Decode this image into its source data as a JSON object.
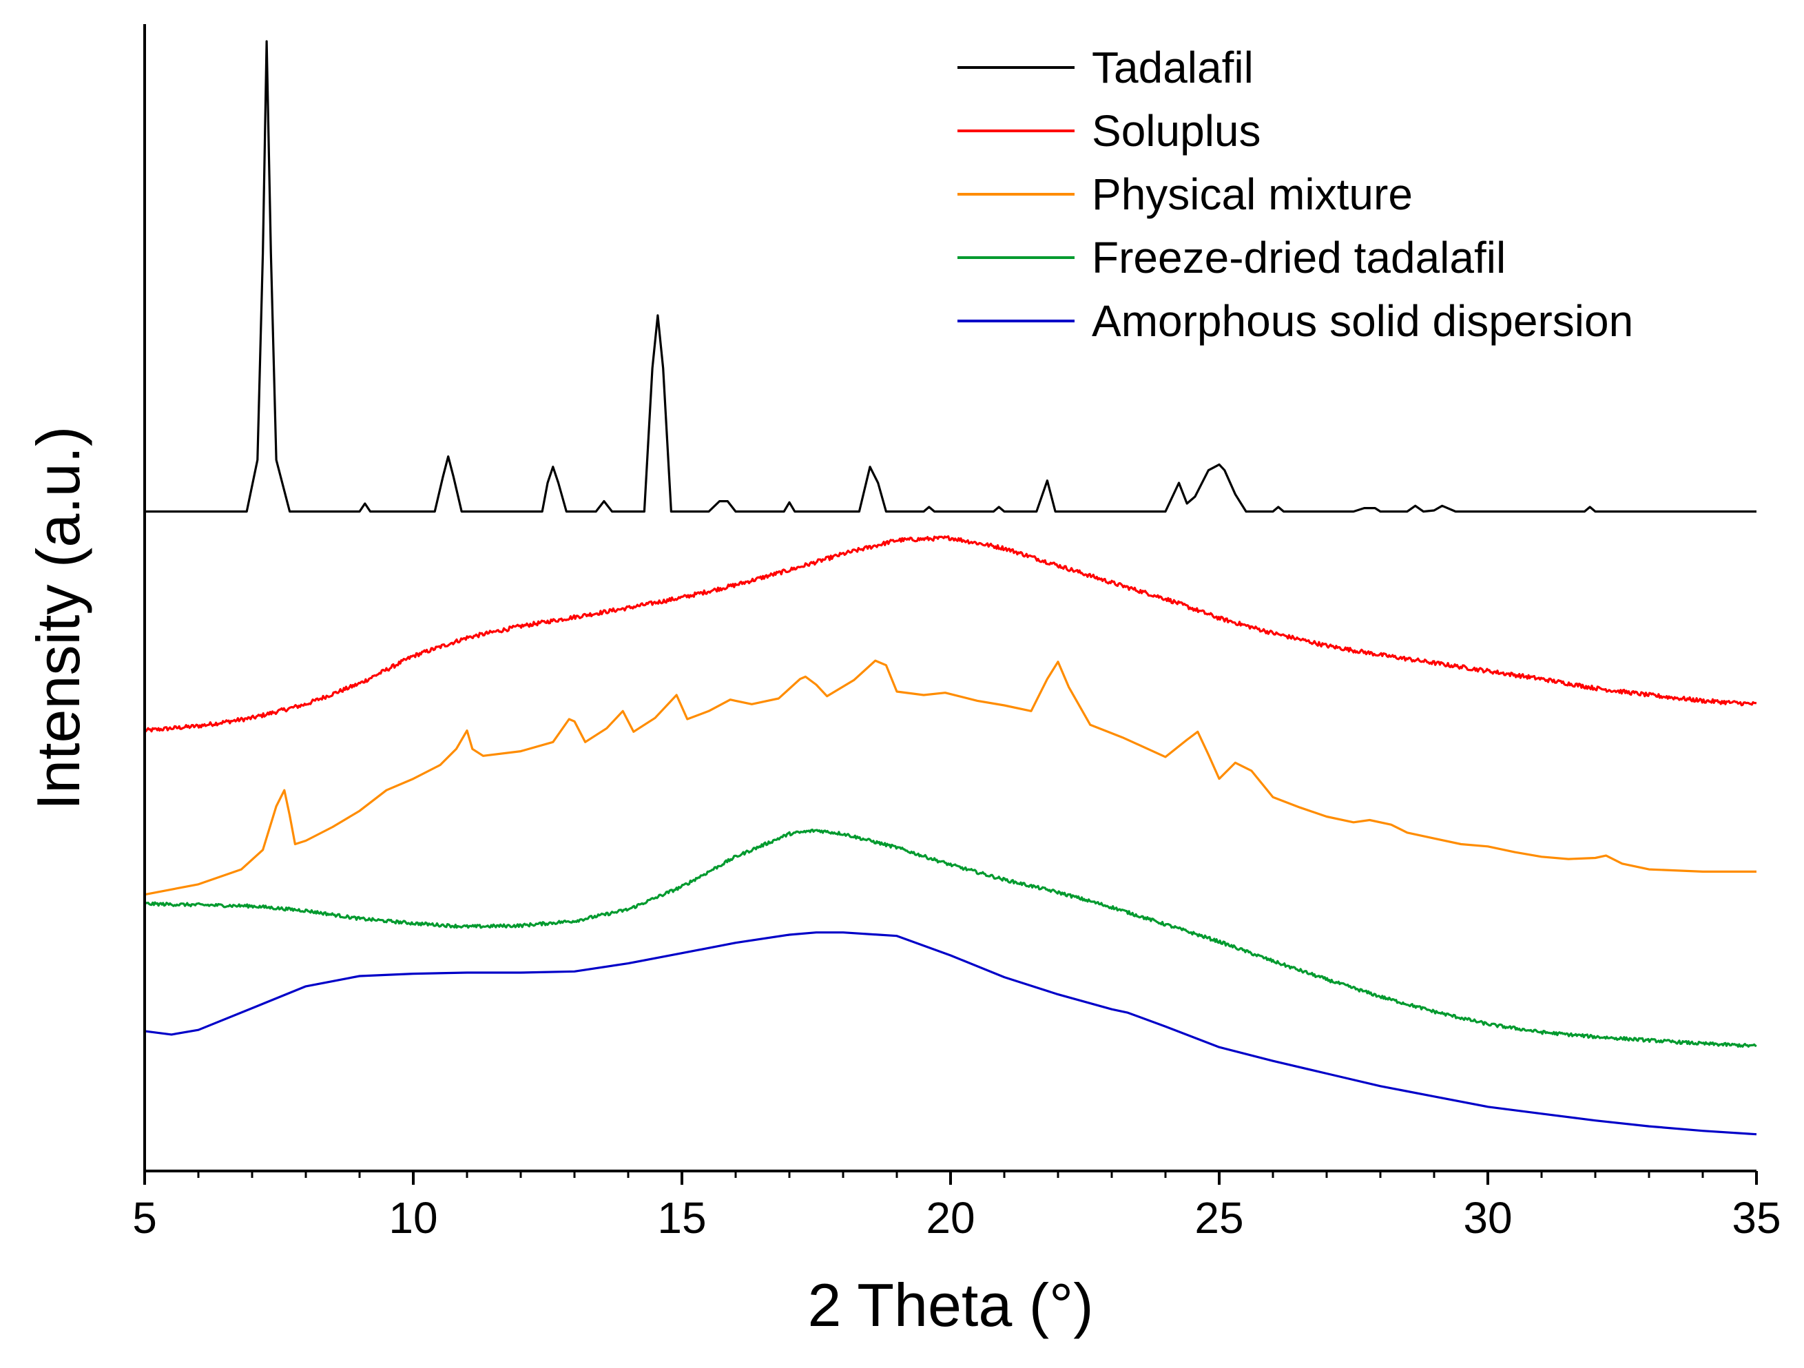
{
  "chart_data": {
    "type": "line",
    "title": "",
    "xlabel": "2 Theta (°)",
    "ylabel": "Intensity (a.u.)",
    "xlim": [
      5,
      35
    ],
    "ylim": [
      0,
      100
    ],
    "xticks": [
      5,
      10,
      15,
      20,
      25,
      30,
      35
    ],
    "xtick_labels": [
      "5",
      "10",
      "15",
      "20",
      "25",
      "30",
      "35"
    ],
    "y_ticks_shown": false,
    "grid": false,
    "legend_position": "top-right",
    "series": [
      {
        "name": "Tadalafil",
        "color": "#000000",
        "noise": 0,
        "x": [
          5,
          6.9,
          7.1,
          7.2,
          7.27,
          7.35,
          7.45,
          7.7,
          9.0,
          9.1,
          9.2,
          10.4,
          10.55,
          10.65,
          10.75,
          10.9,
          12.4,
          12.5,
          12.6,
          12.7,
          12.85,
          13.4,
          13.55,
          13.7,
          14.3,
          14.45,
          14.55,
          14.65,
          14.8,
          15.5,
          15.7,
          15.85,
          16.0,
          16.9,
          17.0,
          17.1,
          18.3,
          18.5,
          18.65,
          18.8,
          19.5,
          19.6,
          19.7,
          20.8,
          20.9,
          21.0,
          21.6,
          21.8,
          21.95,
          24.0,
          24.25,
          24.4,
          24.55,
          24.8,
          25.0,
          25.1,
          25.3,
          25.5,
          26.0,
          26.1,
          26.2,
          27.5,
          27.7,
          27.9,
          28.0,
          28.5,
          28.65,
          28.8,
          29.0,
          29.15,
          29.4,
          31.8,
          31.9,
          32.0,
          35
        ],
        "y": [
          57.5,
          57.5,
          62,
          80,
          98.5,
          80,
          62,
          57.5,
          57.5,
          58.2,
          57.5,
          57.5,
          60.5,
          62.3,
          60.5,
          57.5,
          57.5,
          60,
          61.4,
          60,
          57.5,
          57.5,
          58.4,
          57.5,
          57.5,
          70,
          74.6,
          70,
          57.5,
          57.5,
          58.4,
          58.4,
          57.5,
          57.5,
          58.3,
          57.5,
          57.5,
          61.4,
          60,
          57.5,
          57.5,
          57.9,
          57.5,
          57.5,
          57.9,
          57.5,
          57.5,
          60.2,
          57.5,
          57.5,
          60,
          58.2,
          58.8,
          61.1,
          61.6,
          61.1,
          59,
          57.5,
          57.5,
          57.9,
          57.5,
          57.5,
          57.8,
          57.8,
          57.5,
          57.5,
          58,
          57.5,
          57.6,
          58,
          57.5,
          57.5,
          57.9,
          57.5,
          57.5
        ]
      },
      {
        "name": "Soluplus",
        "color": "#ff0000",
        "noise": 0.18,
        "x": [
          5,
          6,
          7,
          8,
          9,
          10,
          11,
          12,
          13,
          14,
          15,
          16,
          17,
          18,
          19,
          20,
          21,
          22,
          23,
          24,
          25,
          26,
          27,
          28,
          29,
          30,
          31,
          32,
          33,
          34,
          35
        ],
        "y": [
          38.4,
          38.8,
          39.5,
          40.7,
          42.5,
          44.9,
          46.5,
          47.5,
          48.3,
          49.1,
          50,
          51.1,
          52.4,
          53.8,
          55,
          55.2,
          54.3,
          52.8,
          51.3,
          49.9,
          48.2,
          46.9,
          45.8,
          45,
          44.3,
          43.6,
          42.9,
          42.1,
          41.5,
          41,
          40.7
        ]
      },
      {
        "name": "Physical mixture",
        "color": "#ff8c00",
        "noise": 0,
        "x": [
          5,
          6,
          6.8,
          7.2,
          7.45,
          7.6,
          7.7,
          7.8,
          8.0,
          8.5,
          9.0,
          9.5,
          10.0,
          10.5,
          10.8,
          11.0,
          11.1,
          11.3,
          12.0,
          12.6,
          12.9,
          13.0,
          13.2,
          13.6,
          13.9,
          14.1,
          14.5,
          14.9,
          15.1,
          15.5,
          15.9,
          16.0,
          16.3,
          16.8,
          17.2,
          17.3,
          17.5,
          17.7,
          18.2,
          18.6,
          18.8,
          19.0,
          19.5,
          19.9,
          20.5,
          21.0,
          21.5,
          21.8,
          22.0,
          22.2,
          22.6,
          23.2,
          24.0,
          24.4,
          24.6,
          24.8,
          25.0,
          25.3,
          25.6,
          26.0,
          26.5,
          27.0,
          27.5,
          27.8,
          28.2,
          28.5,
          29.0,
          29.5,
          30.0,
          30.5,
          31.0,
          31.5,
          32.0,
          32.2,
          32.5,
          33.0,
          34.0,
          35
        ],
        "y": [
          24.1,
          25,
          26.3,
          28,
          31.8,
          33.2,
          31,
          28.5,
          28.8,
          30,
          31.4,
          33.2,
          34.2,
          35.4,
          36.8,
          38.4,
          36.8,
          36.2,
          36.6,
          37.4,
          39.4,
          39.2,
          37.4,
          38.6,
          40.1,
          38.3,
          39.5,
          41.5,
          39.4,
          40.1,
          41.1,
          41,
          40.7,
          41.2,
          42.9,
          43.1,
          42.4,
          41.4,
          42.8,
          44.5,
          44.1,
          41.8,
          41.5,
          41.7,
          41,
          40.6,
          40.1,
          42.9,
          44.4,
          42.2,
          38.9,
          37.8,
          36.1,
          37.6,
          38.3,
          36.3,
          34.2,
          35.6,
          34.9,
          32.6,
          31.7,
          30.9,
          30.4,
          30.6,
          30.2,
          29.5,
          29,
          28.5,
          28.3,
          27.8,
          27.4,
          27.2,
          27.3,
          27.5,
          26.8,
          26.3,
          26.1,
          26.1
        ]
      },
      {
        "name": "Freeze-dried tadalafil",
        "color": "#009a2e",
        "noise": 0.14,
        "x": [
          5,
          6,
          7,
          8,
          9,
          10,
          11,
          12,
          13,
          14,
          15,
          16,
          17,
          17.5,
          18,
          19,
          20,
          21,
          22,
          23,
          24,
          25,
          26,
          27,
          28,
          29,
          30,
          31,
          32,
          33,
          34,
          35
        ],
        "y": [
          23.3,
          23.2,
          23.1,
          22.7,
          22,
          21.6,
          21.3,
          21.4,
          21.8,
          22.8,
          24.8,
          27.4,
          29.4,
          29.7,
          29.4,
          28.2,
          26.7,
          25.4,
          24.3,
          23,
          21.5,
          20,
          18.3,
          16.7,
          15.2,
          13.9,
          12.8,
          12.1,
          11.7,
          11.4,
          11.1,
          10.9
        ]
      },
      {
        "name": "Amorphous solid dispersion",
        "color": "#0000c8",
        "noise": 0,
        "x": [
          5,
          5.5,
          6,
          7,
          8,
          9,
          10,
          11,
          12,
          13,
          14,
          15,
          16,
          17,
          17.5,
          18,
          19,
          20,
          21,
          22,
          23,
          23.3,
          24,
          25,
          26,
          27,
          28,
          29,
          30,
          31,
          32,
          33,
          34,
          35
        ],
        "y": [
          12.2,
          11.9,
          12.3,
          14.2,
          16.1,
          17,
          17.2,
          17.3,
          17.3,
          17.4,
          18.1,
          19,
          19.9,
          20.6,
          20.8,
          20.8,
          20.5,
          18.8,
          16.9,
          15.4,
          14.1,
          13.8,
          12.6,
          10.8,
          9.6,
          8.5,
          7.4,
          6.5,
          5.6,
          5,
          4.4,
          3.9,
          3.5,
          3.2
        ]
      }
    ]
  }
}
